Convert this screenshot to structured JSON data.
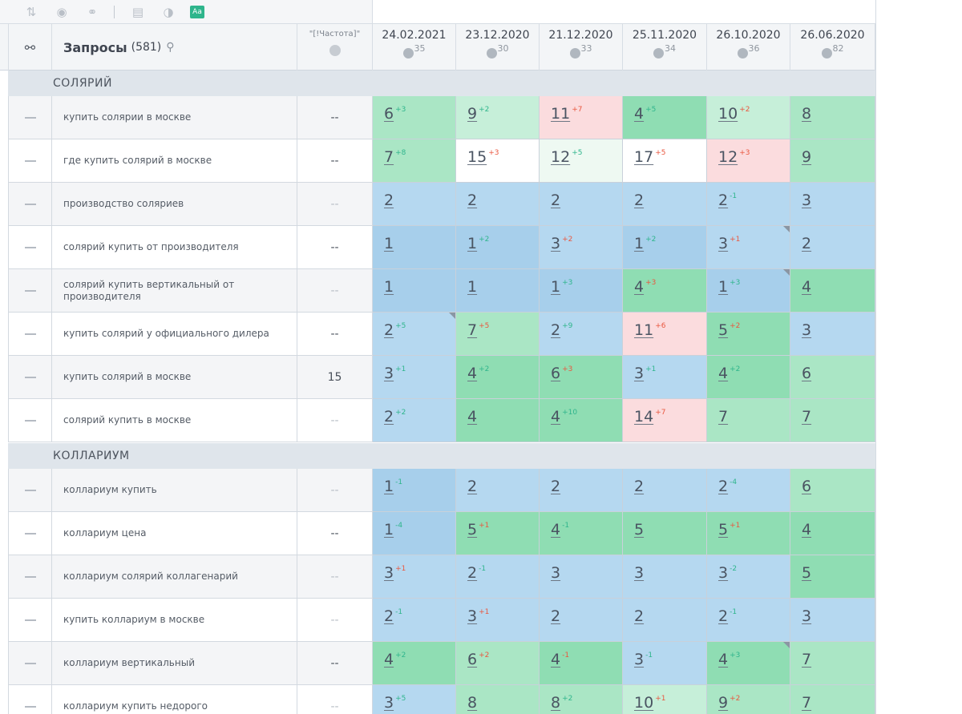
{
  "toolbar": {
    "icons": [
      "sort-icon",
      "toggle-icon",
      "link-icon",
      "grid-icon",
      "contrast-icon",
      "text-format-icon"
    ],
    "aa_label": "Aa"
  },
  "header": {
    "queries_label": "Запросы",
    "queries_count": "(581)",
    "freq_label": "\"[!Частота]\"",
    "dates": [
      {
        "date": "24.02.2021",
        "n": "35"
      },
      {
        "date": "23.12.2020",
        "n": "30"
      },
      {
        "date": "21.12.2020",
        "n": "33"
      },
      {
        "date": "25.11.2020",
        "n": "34"
      },
      {
        "date": "26.10.2020",
        "n": "36"
      },
      {
        "date": "26.06.2020",
        "n": "82"
      }
    ]
  },
  "groups": [
    {
      "title": "СОЛЯРИЙ",
      "rows": [
        {
          "query": "купить солярии в москве",
          "freq": "--",
          "freq_dim": false,
          "alt": true,
          "cells": [
            [
              "6",
              "+3",
              "up",
              "g2"
            ],
            [
              "9",
              "+2",
              "up",
              "g1"
            ],
            [
              "11",
              "+7",
              "dn",
              "red"
            ],
            [
              "4",
              "+5",
              "up",
              "g3"
            ],
            [
              "10",
              "+2",
              "dn",
              "g1"
            ],
            [
              "8",
              "",
              "",
              "g2"
            ]
          ]
        },
        {
          "query": "где купить солярий в москве",
          "freq": "--",
          "freq_dim": false,
          "alt": false,
          "cells": [
            [
              "7",
              "+8",
              "up",
              "g2"
            ],
            [
              "15",
              "+3",
              "dn",
              "w"
            ],
            [
              "12",
              "+5",
              "up",
              "wg"
            ],
            [
              "17",
              "+5",
              "dn",
              "w"
            ],
            [
              "12",
              "+3",
              "dn",
              "red"
            ],
            [
              "9",
              "",
              "",
              "g2"
            ]
          ]
        },
        {
          "query": "производство соляриев",
          "freq": "--",
          "freq_dim": true,
          "alt": true,
          "cells": [
            [
              "2",
              "",
              "",
              "blue"
            ],
            [
              "2",
              "",
              "",
              "blue"
            ],
            [
              "2",
              "",
              "",
              "blue"
            ],
            [
              "2",
              "",
              "",
              "blue"
            ],
            [
              "2",
              "-1",
              "up",
              "blue"
            ],
            [
              "3",
              "",
              "",
              "blue"
            ]
          ]
        },
        {
          "query": "солярий купить от производителя",
          "freq": "--",
          "freq_dim": false,
          "alt": false,
          "cells": [
            [
              "1",
              "",
              "",
              "blue2"
            ],
            [
              "1",
              "+2",
              "up",
              "blue2"
            ],
            [
              "3",
              "+2",
              "dn",
              "blue"
            ],
            [
              "1",
              "+2",
              "up",
              "blue2"
            ],
            [
              "3",
              "+1",
              "dn",
              "blue",
              "corner"
            ],
            [
              "2",
              "",
              "",
              "blue"
            ]
          ]
        },
        {
          "query": "солярий купить вертикальный от производителя",
          "freq": "--",
          "freq_dim": true,
          "alt": true,
          "cells": [
            [
              "1",
              "",
              "",
              "blue2"
            ],
            [
              "1",
              "",
              "",
              "blue2"
            ],
            [
              "1",
              "+3",
              "up",
              "blue2"
            ],
            [
              "4",
              "+3",
              "dn",
              "g3"
            ],
            [
              "1",
              "+3",
              "up",
              "blue2",
              "corner"
            ],
            [
              "4",
              "",
              "",
              "g3"
            ]
          ]
        },
        {
          "query": "купить солярий у официального дилера",
          "freq": "--",
          "freq_dim": false,
          "alt": false,
          "cells": [
            [
              "2",
              "+5",
              "up",
              "blue",
              "corner"
            ],
            [
              "7",
              "+5",
              "dn",
              "g2"
            ],
            [
              "2",
              "+9",
              "up",
              "blue"
            ],
            [
              "11",
              "+6",
              "dn",
              "red"
            ],
            [
              "5",
              "+2",
              "dn",
              "g3"
            ],
            [
              "3",
              "",
              "",
              "blue"
            ]
          ]
        },
        {
          "query": "купить солярий в москве",
          "freq": "15",
          "freq_dim": false,
          "alt": true,
          "cells": [
            [
              "3",
              "+1",
              "up",
              "blue"
            ],
            [
              "4",
              "+2",
              "up",
              "g3"
            ],
            [
              "6",
              "+3",
              "dn",
              "g3"
            ],
            [
              "3",
              "+1",
              "up",
              "blue"
            ],
            [
              "4",
              "+2",
              "up",
              "g3"
            ],
            [
              "6",
              "",
              "",
              "g2"
            ]
          ]
        },
        {
          "query": "солярий купить в москве",
          "freq": "--",
          "freq_dim": true,
          "alt": false,
          "cells": [
            [
              "2",
              "+2",
              "up",
              "blue"
            ],
            [
              "4",
              "",
              "",
              "g3"
            ],
            [
              "4",
              "+10",
              "up",
              "g3"
            ],
            [
              "14",
              "+7",
              "dn",
              "red"
            ],
            [
              "7",
              "",
              "",
              "g2"
            ],
            [
              "7",
              "",
              "",
              "g2"
            ]
          ]
        }
      ]
    },
    {
      "title": "КОЛЛАРИУМ",
      "rows": [
        {
          "query": "коллариум купить",
          "freq": "--",
          "freq_dim": true,
          "alt": true,
          "cells": [
            [
              "1",
              "-1",
              "up",
              "blue2"
            ],
            [
              "2",
              "",
              "",
              "blue"
            ],
            [
              "2",
              "",
              "",
              "blue"
            ],
            [
              "2",
              "",
              "",
              "blue"
            ],
            [
              "2",
              "-4",
              "up",
              "blue"
            ],
            [
              "6",
              "",
              "",
              "g2"
            ]
          ]
        },
        {
          "query": "коллариум цена",
          "freq": "--",
          "freq_dim": false,
          "alt": false,
          "cells": [
            [
              "1",
              "-4",
              "up",
              "blue2"
            ],
            [
              "5",
              "+1",
              "dn",
              "g3"
            ],
            [
              "4",
              "-1",
              "up",
              "g3"
            ],
            [
              "5",
              "",
              "",
              "g3"
            ],
            [
              "5",
              "+1",
              "dn",
              "g3"
            ],
            [
              "4",
              "",
              "",
              "g3"
            ]
          ]
        },
        {
          "query": "коллариум солярий коллагенарий",
          "freq": "--",
          "freq_dim": true,
          "alt": true,
          "cells": [
            [
              "3",
              "+1",
              "dn",
              "blue"
            ],
            [
              "2",
              "-1",
              "up",
              "blue"
            ],
            [
              "3",
              "",
              "",
              "blue"
            ],
            [
              "3",
              "",
              "",
              "blue"
            ],
            [
              "3",
              "-2",
              "up",
              "blue"
            ],
            [
              "5",
              "",
              "",
              "g3"
            ]
          ]
        },
        {
          "query": "купить коллариум в москве",
          "freq": "--",
          "freq_dim": true,
          "alt": false,
          "cells": [
            [
              "2",
              "-1",
              "up",
              "blue"
            ],
            [
              "3",
              "+1",
              "dn",
              "blue"
            ],
            [
              "2",
              "",
              "",
              "blue"
            ],
            [
              "2",
              "",
              "",
              "blue"
            ],
            [
              "2",
              "-1",
              "up",
              "blue"
            ],
            [
              "3",
              "",
              "",
              "blue"
            ]
          ]
        },
        {
          "query": "коллариум вертикальный",
          "freq": "--",
          "freq_dim": false,
          "alt": true,
          "cells": [
            [
              "4",
              "+2",
              "up",
              "g3"
            ],
            [
              "6",
              "+2",
              "dn",
              "g2"
            ],
            [
              "4",
              "-1",
              "dn",
              "g3"
            ],
            [
              "3",
              "-1",
              "up",
              "blue"
            ],
            [
              "4",
              "+3",
              "up",
              "g3",
              "corner"
            ],
            [
              "7",
              "",
              "",
              "g2"
            ]
          ]
        },
        {
          "query": "коллариум купить недорого",
          "freq": "--",
          "freq_dim": true,
          "alt": false,
          "cells": [
            [
              "3",
              "+5",
              "up",
              "blue"
            ],
            [
              "8",
              "",
              "",
              "g2"
            ],
            [
              "8",
              "+2",
              "up",
              "g2"
            ],
            [
              "10",
              "+1",
              "dn",
              "g1"
            ],
            [
              "9",
              "+2",
              "dn",
              "g2"
            ],
            [
              "7",
              "",
              "",
              "g2"
            ]
          ]
        }
      ]
    }
  ]
}
